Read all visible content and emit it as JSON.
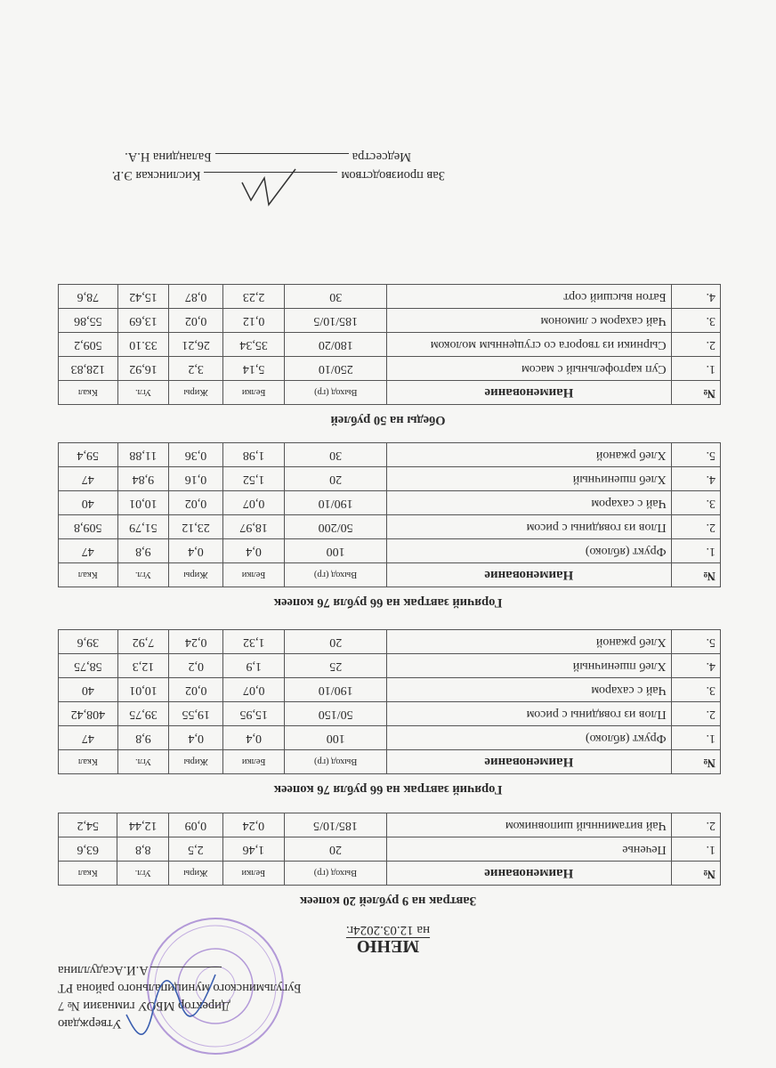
{
  "approval": {
    "line1": "Утверждаю",
    "line2": "Директор МБОУ гимназии № 7",
    "line3": "Бугульминского муниципального района РТ",
    "line4": "А.И.Асадуллина"
  },
  "header": {
    "title": "МЕНЮ",
    "date": "на 12.03.2024г."
  },
  "columns": {
    "no": "№",
    "name": "Наименование",
    "yield": "Выход (гр)",
    "protein": "Белки",
    "fat": "Жиры",
    "carbs": "Угл.",
    "kcal": "Ккал"
  },
  "sections": [
    {
      "title": "Завтрак на 9 рублей 20 копеек",
      "rows": [
        {
          "no": "1.",
          "name": "Печенье",
          "yield": "20",
          "protein": "1,46",
          "fat": "2,5",
          "carbs": "8,8",
          "kcal": "63,6"
        },
        {
          "no": "2.",
          "name": "Чай витаминный шиповником",
          "yield": "185/10/5",
          "protein": "0,24",
          "fat": "0,09",
          "carbs": "12,44",
          "kcal": "54,2"
        }
      ]
    },
    {
      "title": "Горячий завтрак на 66 рубля 76 копеек",
      "rows": [
        {
          "no": "1.",
          "name": "Фрукт (яблоко)",
          "yield": "100",
          "protein": "0,4",
          "fat": "0,4",
          "carbs": "9,8",
          "kcal": "47"
        },
        {
          "no": "2.",
          "name": "Плов из говядины с рисом",
          "yield": "50/150",
          "protein": "15,95",
          "fat": "19,55",
          "carbs": "39,75",
          "kcal": "408,42"
        },
        {
          "no": "3.",
          "name": "Чай с сахаром",
          "yield": "190/10",
          "protein": "0,07",
          "fat": "0,02",
          "carbs": "10,01",
          "kcal": "40"
        },
        {
          "no": "4.",
          "name": "Хлеб пшеничный",
          "yield": "25",
          "protein": "1,9",
          "fat": "0,2",
          "carbs": "12,3",
          "kcal": "58,75"
        },
        {
          "no": "5.",
          "name": "Хлеб ржаной",
          "yield": "20",
          "protein": "1,32",
          "fat": "0,24",
          "carbs": "7,92",
          "kcal": "39,6"
        }
      ]
    },
    {
      "title": "Горячий завтрак на 66 рубля 76 копеек",
      "rows": [
        {
          "no": "1.",
          "name": "Фрукт (яблоко)",
          "yield": "100",
          "protein": "0,4",
          "fat": "0,4",
          "carbs": "9,8",
          "kcal": "47"
        },
        {
          "no": "2.",
          "name": "Плов из говядины с рисом",
          "yield": "50/200",
          "protein": "18,97",
          "fat": "23,12",
          "carbs": "51,79",
          "kcal": "509,8"
        },
        {
          "no": "3.",
          "name": "Чай с сахаром",
          "yield": "190/10",
          "protein": "0,07",
          "fat": "0,02",
          "carbs": "10,01",
          "kcal": "40"
        },
        {
          "no": "4.",
          "name": "Хлеб пшеничный",
          "yield": "20",
          "protein": "1,52",
          "fat": "0,16",
          "carbs": "9,84",
          "kcal": "47"
        },
        {
          "no": "5.",
          "name": "Хлеб ржаной",
          "yield": "30",
          "protein": "1,98",
          "fat": "0,36",
          "carbs": "11,88",
          "kcal": "59,4"
        }
      ]
    },
    {
      "title": "Обеды на 50 рублей",
      "rows": [
        {
          "no": "1.",
          "name": "Суп картофельный с масом",
          "yield": "250/10",
          "protein": "5,14",
          "fat": "3,2",
          "carbs": "16,92",
          "kcal": "128,83"
        },
        {
          "no": "2.",
          "name": "Сырники из творога со сгущенным молоком",
          "yield": "180/20",
          "protein": "35,34",
          "fat": "26,21",
          "carbs": "33.10",
          "kcal": "509,2"
        },
        {
          "no": "3.",
          "name": "Чай сахаром с лимоном",
          "yield": "185/10/5",
          "protein": "0,12",
          "fat": "0,02",
          "carbs": "13,69",
          "kcal": "55,86"
        },
        {
          "no": "4.",
          "name": "Батон высший сорт",
          "yield": "30",
          "protein": "2,23",
          "fat": "0,87",
          "carbs": "15,42",
          "kcal": "78,6"
        }
      ]
    }
  ],
  "signatures": {
    "production_label": "Зав производством",
    "production_name": "Кислинская Э.Р.",
    "nurse_label": "Медсестра",
    "nurse_name": "Баландина Н.А."
  },
  "colors": {
    "stamp": "#b39ad8",
    "signature_ink": "#3b5fb0",
    "paper": "#f6f6f4"
  }
}
